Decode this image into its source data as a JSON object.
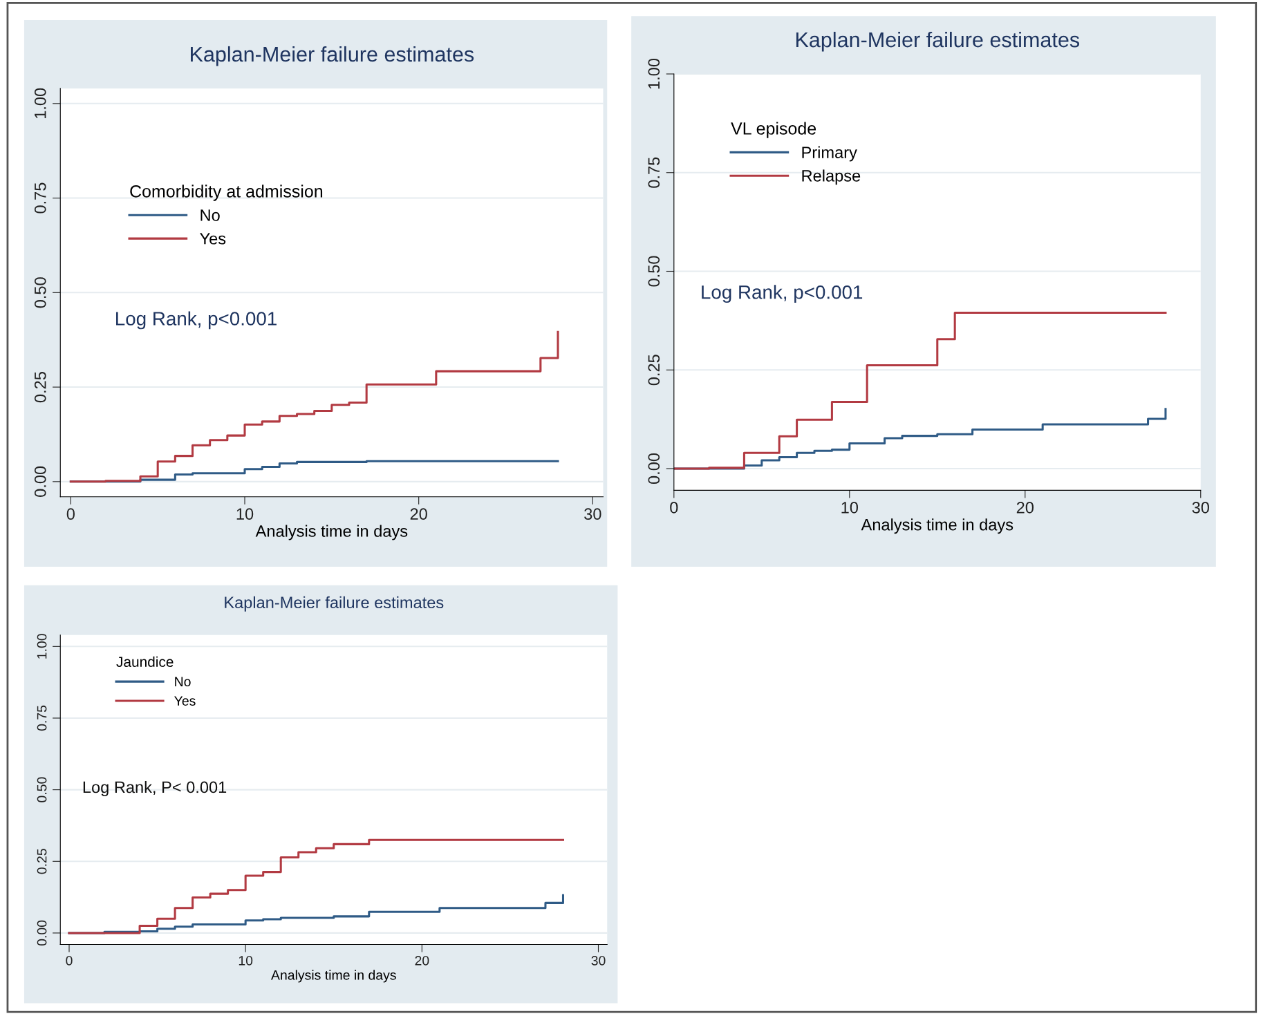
{
  "chart_data": [
    {
      "type": "step",
      "title": "Kaplan-Meier failure estimates",
      "xlabel": "Analysis time in days",
      "legend_title": "Comorbidity at admission",
      "legend": "top left",
      "grid": "y",
      "annotations": [
        "Log Rank, p<0.001"
      ],
      "xlim": [
        -0.6,
        30.6
      ],
      "ylim": [
        -0.04,
        1.04
      ],
      "xticks": [
        0,
        10,
        20,
        30
      ],
      "yticks": [
        {
          "value": 0,
          "label": "0.00"
        },
        {
          "value": 0.25,
          "label": "0.25"
        },
        {
          "value": 0.5,
          "label": "0.50"
        },
        {
          "value": 0.75,
          "label": "0.75"
        },
        {
          "value": 1,
          "label": "1.00"
        }
      ],
      "series": [
        {
          "name": "No",
          "color": "#2f5b86",
          "x": [
            0,
            4,
            6,
            7,
            10,
            11,
            12,
            13,
            17,
            28
          ],
          "values": [
            0,
            0.005,
            0.019,
            0.022,
            0.033,
            0.039,
            0.048,
            0.052,
            0.054,
            0.054
          ]
        },
        {
          "name": "Yes",
          "color": "#b23a42",
          "x": [
            0,
            2,
            4,
            5,
            6,
            7,
            8,
            9,
            10,
            11,
            12,
            13,
            14,
            15,
            16,
            17,
            21,
            27,
            28
          ],
          "values": [
            0,
            0.002,
            0.014,
            0.053,
            0.068,
            0.096,
            0.11,
            0.122,
            0.151,
            0.159,
            0.174,
            0.179,
            0.187,
            0.203,
            0.209,
            0.257,
            0.292,
            0.327,
            0.396
          ]
        }
      ]
    },
    {
      "type": "step",
      "title": "Kaplan-Meier failure estimates",
      "xlabel": "Analysis time in days",
      "legend_title": "VL episode",
      "legend": "top left",
      "grid": "y",
      "annotations": [
        "Log Rank, p<0.001"
      ],
      "xlim": [
        0,
        30
      ],
      "ylim": [
        -0.055,
        1.0
      ],
      "xticks": [
        0,
        10,
        20,
        30
      ],
      "yticks": [
        {
          "value": 0,
          "label": "0.00"
        },
        {
          "value": 0.25,
          "label": "0.25"
        },
        {
          "value": 0.5,
          "label": "0.50"
        },
        {
          "value": 0.75,
          "label": "0.75"
        },
        {
          "value": 1,
          "label": "1.00"
        }
      ],
      "series": [
        {
          "name": "Primary",
          "color": "#2f5b86",
          "x": [
            0,
            4,
            5,
            6,
            7,
            8,
            9,
            10,
            12,
            13,
            15,
            17,
            21,
            27,
            28
          ],
          "values": [
            0,
            0.008,
            0.021,
            0.029,
            0.04,
            0.045,
            0.048,
            0.064,
            0.077,
            0.083,
            0.087,
            0.099,
            0.112,
            0.126,
            0.151
          ]
        },
        {
          "name": "Relapse",
          "color": "#b23a42",
          "x": [
            0,
            2,
            4,
            6,
            7,
            9,
            11,
            15,
            16,
            28
          ],
          "values": [
            0,
            0.002,
            0.04,
            0.082,
            0.124,
            0.169,
            0.262,
            0.328,
            0.395,
            0.395
          ]
        }
      ]
    },
    {
      "type": "step",
      "title": "Kaplan-Meier failure estimates",
      "xlabel": "Analysis time in days",
      "legend_title": "Jaundice",
      "legend": "top left",
      "grid": "y",
      "annotations": [
        "Log Rank, P< 0.001"
      ],
      "xlim": [
        -0.5,
        30.5
      ],
      "ylim": [
        -0.04,
        1.04
      ],
      "xticks": [
        0,
        10,
        20,
        30
      ],
      "yticks": [
        {
          "value": 0,
          "label": "0.00"
        },
        {
          "value": 0.25,
          "label": "0.25"
        },
        {
          "value": 0.5,
          "label": "0.50"
        },
        {
          "value": 0.75,
          "label": "0.75"
        },
        {
          "value": 1,
          "label": "1.00"
        }
      ],
      "series": [
        {
          "name": "No",
          "color": "#2f5b86",
          "x": [
            0,
            2,
            4,
            5,
            6,
            7,
            10,
            11,
            12,
            15,
            17,
            21,
            27,
            28
          ],
          "values": [
            0,
            0.004,
            0.006,
            0.015,
            0.022,
            0.03,
            0.044,
            0.048,
            0.053,
            0.058,
            0.074,
            0.087,
            0.105,
            0.132
          ]
        },
        {
          "name": "Yes",
          "color": "#b23a42",
          "x": [
            0,
            4,
            5,
            6,
            7,
            8,
            9,
            10,
            11,
            12,
            13,
            14,
            15,
            17,
            28
          ],
          "values": [
            0,
            0.025,
            0.05,
            0.087,
            0.124,
            0.137,
            0.15,
            0.2,
            0.213,
            0.264,
            0.282,
            0.296,
            0.31,
            0.325,
            0.325
          ]
        }
      ]
    }
  ]
}
